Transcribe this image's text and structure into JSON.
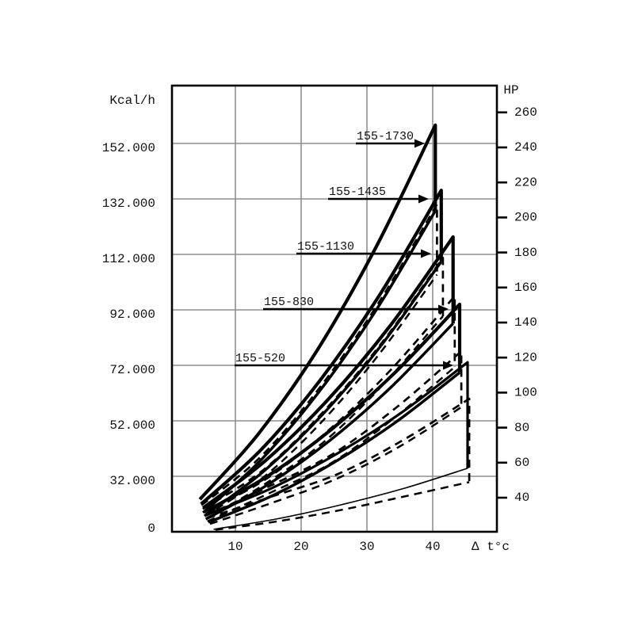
{
  "colors": {
    "background": "#ffffff",
    "grid": "#8f8f8f",
    "curve": "#000000",
    "text": "#111111"
  },
  "axes": {
    "y_left": {
      "title": "Kcal/h",
      "ticks": [
        {
          "label": "152.000",
          "value": 152000
        },
        {
          "label": "132.000",
          "value": 132000
        },
        {
          "label": "112.000",
          "value": 112000
        },
        {
          "label": "92.000",
          "value": 92000
        },
        {
          "label": "72.000",
          "value": 72000
        },
        {
          "label": "52.000",
          "value": 52000
        },
        {
          "label": "32.000",
          "value": 32000
        },
        {
          "label": "0",
          "value": 0
        }
      ],
      "scale_note": "gridlines evenly spaced; bottom interval 0-32.000 spans one grid division"
    },
    "y_right": {
      "title": "HP",
      "ticks": [
        260,
        240,
        220,
        200,
        180,
        160,
        140,
        120,
        100,
        80,
        60,
        40
      ]
    },
    "x": {
      "title": "Δ t°c",
      "ticks": [
        10,
        20,
        30,
        40
      ],
      "range": [
        0,
        50
      ]
    }
  },
  "chart_data": {
    "type": "line",
    "xlabel": "Δ t°c",
    "ylabel_left": "Kcal/h",
    "ylabel_right": "HP",
    "x_range": [
      0,
      50
    ],
    "grid": true,
    "legend": "none",
    "dashed_curves": {
      "value_ratio_of_solid": 0.82,
      "x_offset": 0.25,
      "note": "each unit also drawn as dashed band slightly offset, capacities ~0.82x solid band"
    },
    "series": [
      {
        "name": "155-1730",
        "upper": [
          [
            4.6,
            18700
          ],
          [
            13.5,
            47300
          ],
          [
            22.5,
            77700
          ],
          [
            31.4,
            114700
          ],
          [
            40.4,
            158600
          ]
        ],
        "lower": [
          [
            5.1,
            11000
          ],
          [
            13.9,
            37900
          ],
          [
            22.7,
            62400
          ],
          [
            31.5,
            92300
          ],
          [
            40.4,
            127700
          ]
        ]
      },
      {
        "name": "155-1435",
        "upper": [
          [
            4.8,
            16000
          ],
          [
            14.0,
            41800
          ],
          [
            23.1,
            67300
          ],
          [
            32.2,
            98400
          ],
          [
            41.3,
            135100
          ]
        ],
        "lower": [
          [
            5.3,
            9100
          ],
          [
            14.3,
            33800
          ],
          [
            23.3,
            54400
          ],
          [
            32.3,
            79600
          ],
          [
            41.3,
            109400
          ]
        ]
      },
      {
        "name": "155-1130",
        "upper": [
          [
            5.1,
            13700
          ],
          [
            14.6,
            37700
          ],
          [
            24.1,
            59700
          ],
          [
            33.6,
            86500
          ],
          [
            43.1,
            118300
          ]
        ],
        "lower": [
          [
            5.5,
            7300
          ],
          [
            14.9,
            27100
          ],
          [
            24.3,
            44800
          ],
          [
            33.7,
            64200
          ],
          [
            43.1,
            87100
          ]
        ]
      },
      {
        "name": "155-830",
        "upper": [
          [
            5.3,
            11400
          ],
          [
            15.0,
            32200
          ],
          [
            24.7,
            49100
          ],
          [
            34.4,
            69700
          ],
          [
            44.1,
            94000
          ]
        ],
        "lower": [
          [
            5.9,
            5500
          ],
          [
            15.5,
            20600
          ],
          [
            25.0,
            37000
          ],
          [
            34.6,
            51900
          ],
          [
            44.1,
            69400
          ]
        ]
      },
      {
        "name": "155-520",
        "upper": [
          [
            5.5,
            9600
          ],
          [
            15.5,
            25100
          ],
          [
            25.4,
            40100
          ],
          [
            35.4,
            55200
          ],
          [
            45.3,
            73100
          ]
        ],
        "lower": [
          [
            6.7,
            1400
          ],
          [
            16.4,
            7500
          ],
          [
            26.0,
            15500
          ],
          [
            35.7,
            25100
          ],
          [
            45.3,
            34900
          ]
        ]
      }
    ]
  }
}
